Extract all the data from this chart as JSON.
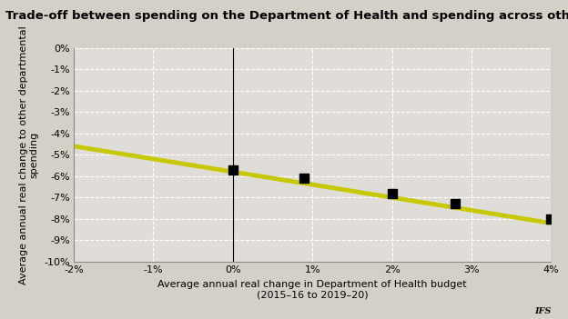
{
  "title": "Trade-off between spending on the Department of Health and spending across other departments",
  "xlabel": "Average annual real change in Department of Health budget\n(2015–16 to 2019–20)",
  "ylabel": "Average annual real change to other departmental\nspending",
  "xlim": [
    -0.02,
    0.04
  ],
  "ylim": [
    -0.1,
    0.0
  ],
  "xticks": [
    -0.02,
    -0.01,
    0.0,
    0.01,
    0.02,
    0.03,
    0.04
  ],
  "yticks": [
    0.0,
    -0.01,
    -0.02,
    -0.03,
    -0.04,
    -0.05,
    -0.06,
    -0.07,
    -0.08,
    -0.09,
    -0.1
  ],
  "line_x": [
    -0.02,
    0.04
  ],
  "line_y": [
    -0.046,
    -0.082
  ],
  "scatter_x": [
    0.0,
    0.009,
    0.02,
    0.028,
    0.04
  ],
  "scatter_y": [
    -0.057,
    -0.061,
    -0.068,
    -0.073,
    -0.08
  ],
  "line_color": "#c8c800",
  "line_width": 3.5,
  "scatter_color": "#000000",
  "scatter_size": 45,
  "scatter_marker": "s",
  "fig_bg_color": "#d4d0c8",
  "plot_bg_color": "#e0ddd8",
  "grid_color": "#ffffff",
  "title_fontsize": 9.5,
  "axis_fontsize": 8,
  "tick_fontsize": 8,
  "watermark": "IFS",
  "vline_x": 0.0,
  "vline_color": "#000000"
}
